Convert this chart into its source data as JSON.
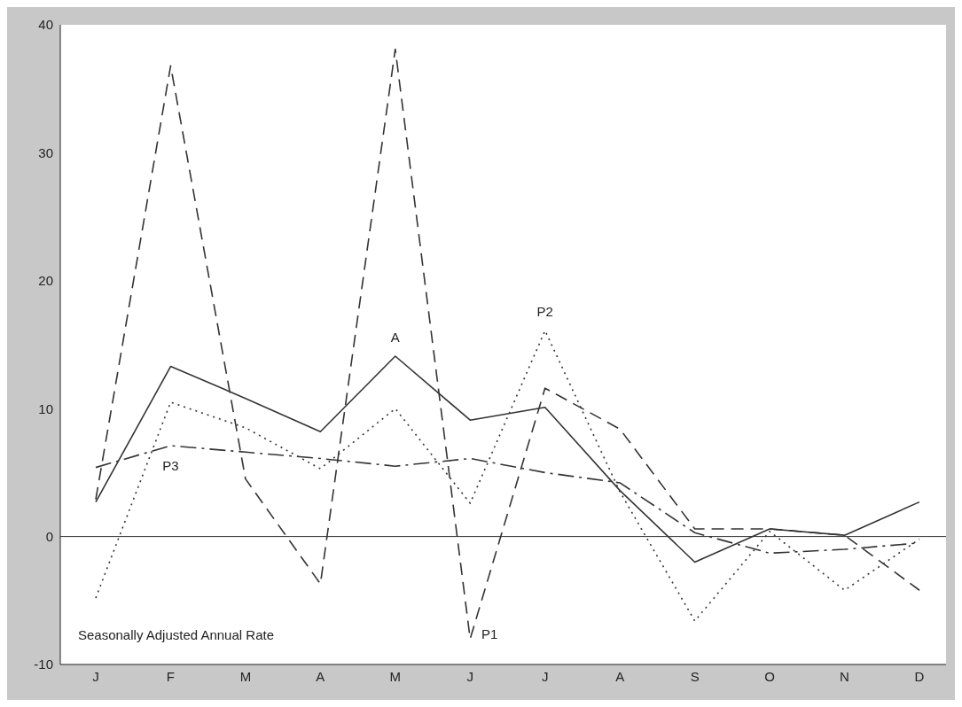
{
  "chart_data": {
    "type": "line",
    "categories": [
      "J",
      "F",
      "M",
      "A",
      "M",
      "J",
      "J",
      "A",
      "S",
      "O",
      "N",
      "D"
    ],
    "series": [
      {
        "name": "A",
        "color": "#333333",
        "line_style": "solid",
        "values": [
          2.7,
          13.3,
          10.8,
          8.2,
          14.1,
          9.1,
          10.1,
          3.6,
          -2.0,
          0.6,
          0.1,
          2.7
        ]
      },
      {
        "name": "P1",
        "color": "#333333",
        "line_style": "dashed",
        "values": [
          2.9,
          36.8,
          4.5,
          -3.7,
          38.1,
          -8.0,
          11.6,
          8.4,
          0.6,
          0.6,
          0.1,
          -4.2
        ]
      },
      {
        "name": "P2",
        "color": "#333333",
        "line_style": "dotted",
        "values": [
          -4.8,
          10.5,
          8.5,
          5.3,
          10.0,
          2.6,
          16.1,
          3.5,
          -6.6,
          0.4,
          -4.2,
          -0.2
        ]
      },
      {
        "name": "P3",
        "color": "#333333",
        "line_style": "dashdot",
        "values": [
          5.4,
          7.1,
          6.6,
          6.1,
          5.5,
          6.1,
          5.0,
          4.2,
          0.3,
          -1.3,
          -1.0,
          -0.5
        ]
      }
    ],
    "ylim": [
      -10,
      40
    ],
    "yticks": [
      -10,
      0,
      10,
      20,
      30,
      40
    ],
    "legend": false,
    "marker": "none",
    "ref_lines": [
      {
        "axis": "y",
        "value": 0,
        "color": "#333333"
      }
    ],
    "annotations": [
      "Seasonally Adjusted Annual Rate"
    ]
  }
}
